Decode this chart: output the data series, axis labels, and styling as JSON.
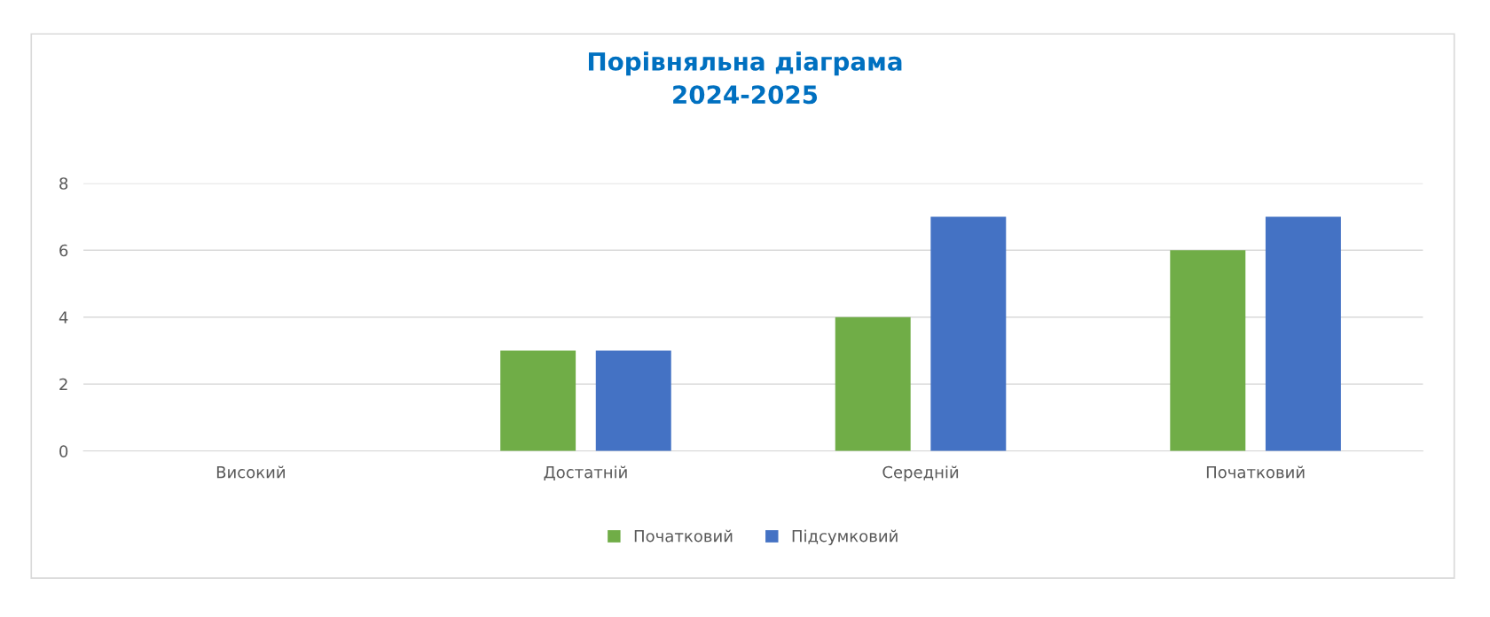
{
  "chart_data": {
    "type": "bar",
    "title": "Порівняльна діаграма\n2024-2025",
    "categories": [
      "Високий",
      "Достатній",
      "Середній",
      "Початковий"
    ],
    "series": [
      {
        "name": "Початковий",
        "color": "#70ad47",
        "values": [
          0,
          3,
          4,
          6
        ]
      },
      {
        "name": "Підсумковий",
        "color": "#4472c4",
        "values": [
          0,
          3,
          7,
          7
        ]
      }
    ],
    "ylim": [
      0,
      8
    ],
    "yticks": [
      0,
      2,
      4,
      6,
      8
    ],
    "grid": "y",
    "legend": "bottom"
  }
}
